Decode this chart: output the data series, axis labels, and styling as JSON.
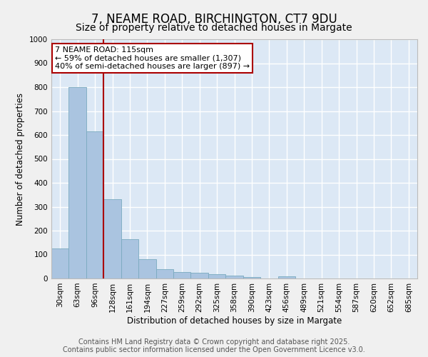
{
  "title": "7, NEAME ROAD, BIRCHINGTON, CT7 9DU",
  "subtitle": "Size of property relative to detached houses in Margate",
  "xlabel": "Distribution of detached houses by size in Margate",
  "ylabel": "Number of detached properties",
  "categories": [
    "30sqm",
    "63sqm",
    "96sqm",
    "128sqm",
    "161sqm",
    "194sqm",
    "227sqm",
    "259sqm",
    "292sqm",
    "325sqm",
    "358sqm",
    "390sqm",
    "423sqm",
    "456sqm",
    "489sqm",
    "521sqm",
    "554sqm",
    "587sqm",
    "620sqm",
    "652sqm",
    "685sqm"
  ],
  "values": [
    125,
    800,
    615,
    330,
    165,
    80,
    40,
    28,
    25,
    18,
    13,
    5,
    0,
    8,
    0,
    0,
    0,
    0,
    0,
    0,
    0
  ],
  "bar_color": "#aac4e0",
  "bar_edge_color": "#7aaabf",
  "vline_color": "#aa0000",
  "vline_x_index": 2.5,
  "annotation_text": "7 NEAME ROAD: 115sqm\n← 59% of detached houses are smaller (1,307)\n40% of semi-detached houses are larger (897) →",
  "annotation_box_color": "#ffffff",
  "annotation_box_edge": "#aa0000",
  "ylim": [
    0,
    1000
  ],
  "yticks": [
    0,
    100,
    200,
    300,
    400,
    500,
    600,
    700,
    800,
    900,
    1000
  ],
  "background_color": "#dce8f5",
  "grid_color": "#ffffff",
  "fig_background": "#f0f0f0",
  "footer1": "Contains HM Land Registry data © Crown copyright and database right 2025.",
  "footer2": "Contains public sector information licensed under the Open Government Licence v3.0.",
  "title_fontsize": 12,
  "subtitle_fontsize": 10,
  "label_fontsize": 8.5,
  "tick_fontsize": 7.5,
  "footer_fontsize": 7
}
